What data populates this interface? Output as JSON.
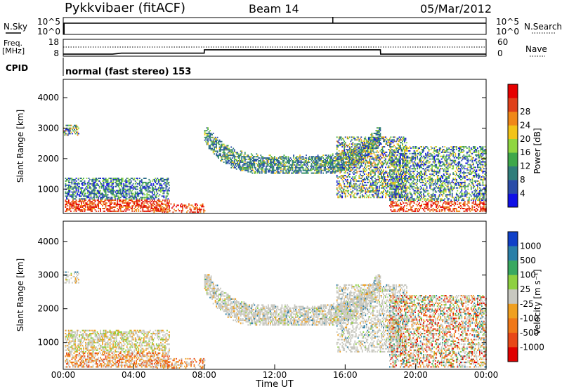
{
  "header": {
    "title": "Pykkvibaer (fitACF)",
    "beam": "Beam 14",
    "date": "05/Mar/2012"
  },
  "chart_data": [
    {
      "type": "line",
      "panel": "n-sky-n-search",
      "left_label": "N.Sky",
      "right_label": "N.Search",
      "left_ticks": [
        "10^5",
        "10^0"
      ],
      "right_ticks": [
        "10^5",
        "10^0"
      ],
      "series": [
        {
          "name": "N.Sky",
          "x": [
            0,
            6,
            12,
            15.3,
            18,
            21,
            22.5,
            24
          ],
          "values": [
            5,
            5,
            5,
            5,
            5,
            5,
            5,
            5
          ]
        }
      ]
    },
    {
      "type": "line",
      "panel": "freq-nave",
      "left_label": "Freq.",
      "left_unit": "[MHz]",
      "right_label": "Nave",
      "left_ticks": [
        "18",
        "8"
      ],
      "right_ticks": [
        "60",
        "0"
      ],
      "ylim": [
        8,
        18
      ],
      "x": [
        0,
        2.8,
        3.3,
        8.0,
        8.01,
        18.0,
        18.01,
        24
      ],
      "values": [
        9.2,
        9.2,
        9.8,
        9.8,
        11.8,
        11.8,
        9.2,
        9.2
      ]
    },
    {
      "type": "table",
      "panel": "cpid",
      "label": "CPID",
      "mode_text": "normal (fast stereo) 153"
    },
    {
      "type": "heatmap",
      "panel": "power",
      "ylabel": "Slant Range [km]",
      "y_ticks": [
        "1000",
        "2000",
        "3000",
        "4000"
      ],
      "ylim": [
        200,
        4600
      ],
      "xlim": [
        0,
        24
      ],
      "colorbar": {
        "label": "Power [dB]",
        "ticks": [
          "4",
          "8",
          "12",
          "16",
          "20",
          "24",
          "28"
        ],
        "colors": [
          "#1010e6",
          "#2a4ca8",
          "#2f7d7a",
          "#3ea84a",
          "#8fd640",
          "#f2c418",
          "#f08818",
          "#e0401a",
          "#e60000"
        ]
      }
    },
    {
      "type": "heatmap",
      "panel": "velocity",
      "ylabel": "Slant Range [km]",
      "y_ticks": [
        "1000",
        "2000",
        "3000",
        "4000"
      ],
      "ylim": [
        200,
        4600
      ],
      "xlim": [
        0,
        24
      ],
      "x_ticks": [
        "00:00",
        "04:00",
        "08:00",
        "12:00",
        "16:00",
        "20:00",
        "00:00"
      ],
      "xlabel": "Time UT",
      "colorbar": {
        "label": "Velocity [m s⁻¹]",
        "ticks": [
          "1000",
          "500",
          "100",
          "25",
          "-25",
          "-100",
          "-500",
          "-1000"
        ],
        "colors": [
          "#1040c8",
          "#2a7fa8",
          "#38a860",
          "#8ed040",
          "#c8c8c0",
          "#f0a020",
          "#f07818",
          "#e84818",
          "#e00000"
        ]
      }
    }
  ]
}
